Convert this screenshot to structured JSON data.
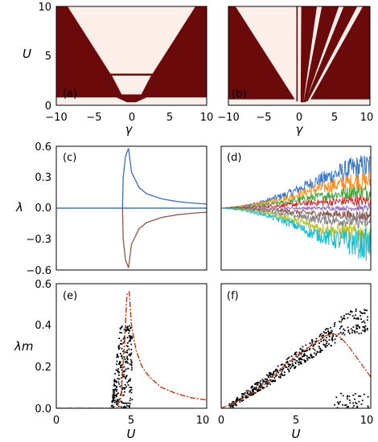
{
  "chart_data": [
    {
      "panel_label": "(a)",
      "type": "heatmap",
      "xlabel": "γ",
      "ylabel": "U",
      "xlim": [
        -10,
        10
      ],
      "ylim": [
        0,
        10
      ],
      "xticks": [
        "−10",
        "−5",
        "0",
        "5",
        "10"
      ],
      "yticks": [
        "0",
        "5",
        "10"
      ],
      "region_colors": [
        "#fcefe9",
        "#6b0a0a"
      ],
      "regions": [
        {
          "class": "dark",
          "polygon": [
            [
              -10,
              10
            ],
            [
              -8.5,
              10
            ],
            [
              -2.8,
              3.2
            ],
            [
              2.8,
              3.2
            ],
            [
              8.5,
              10
            ],
            [
              10,
              10
            ],
            [
              10,
              0.8
            ],
            [
              2,
              0.8
            ],
            [
              0.6,
              0.3
            ],
            [
              -0.6,
              0.3
            ],
            [
              -2,
              0.8
            ],
            [
              -10,
              0.8
            ]
          ]
        },
        {
          "class": "light",
          "polygon": [
            [
              -2.6,
              3.0
            ],
            [
              2.6,
              3.0
            ],
            [
              1.3,
              1.1
            ],
            [
              -1.3,
              1.1
            ]
          ]
        }
      ]
    },
    {
      "panel_label": "(b)",
      "type": "heatmap",
      "xlabel": "γ",
      "ylabel": "",
      "xlim": [
        -10,
        10
      ],
      "ylim": [
        0,
        10
      ],
      "xticks": [
        "−10",
        "−5",
        "0",
        "5",
        "10"
      ],
      "yticks": [],
      "region_colors": [
        "#fcefe9",
        "#6b0a0a"
      ],
      "regions": [
        {
          "class": "dark",
          "polygon": [
            [
              -10,
              10
            ],
            [
              -9,
              10
            ],
            [
              -0.6,
              0.6
            ],
            [
              -10,
              0.6
            ]
          ]
        },
        {
          "class": "dark",
          "polygon": [
            [
              -0.4,
              10
            ],
            [
              -0.2,
              10
            ],
            [
              -0.2,
              0.4
            ],
            [
              -0.4,
              0.4
            ]
          ]
        },
        {
          "class": "dark",
          "polygon": [
            [
              0.3,
              10
            ],
            [
              2.5,
              10
            ],
            [
              0.6,
              0.3
            ],
            [
              0.2,
              0.3
            ]
          ]
        },
        {
          "class": "dark",
          "polygon": [
            [
              3.2,
              10
            ],
            [
              5.6,
              10
            ],
            [
              0.9,
              0.3
            ],
            [
              0.6,
              0.3
            ]
          ]
        },
        {
          "class": "dark",
          "polygon": [
            [
              6.3,
              10
            ],
            [
              8.2,
              10
            ],
            [
              1.2,
              0.4
            ],
            [
              0.9,
              0.4
            ]
          ]
        },
        {
          "class": "dark",
          "polygon": [
            [
              9,
              10
            ],
            [
              10,
              10
            ],
            [
              10,
              0.6
            ],
            [
              1.6,
              0.6
            ]
          ]
        }
      ]
    },
    {
      "panel_label": "(c)",
      "type": "line",
      "xlabel": "",
      "ylabel": "λ",
      "xlim": [
        0,
        10
      ],
      "ylim": [
        -0.6,
        0.6
      ],
      "xticks": [],
      "yticks": [
        "−0.6",
        "−0.3",
        "0.0",
        "0.3",
        "0.6"
      ],
      "ytick_values": [
        -0.6,
        -0.3,
        0.0,
        0.3,
        0.6
      ],
      "series": [
        {
          "color": "#3b6fb6",
          "x": [
            4.4,
            4.45,
            4.6,
            4.8,
            5.0,
            5.5,
            6.0,
            7.0,
            8.0,
            9.0,
            10.0
          ],
          "y": [
            0.0,
            0.3,
            0.5,
            0.58,
            0.35,
            0.2,
            0.14,
            0.09,
            0.065,
            0.05,
            0.04
          ]
        },
        {
          "color": "#8b5a4a",
          "x": [
            4.4,
            4.45,
            4.6,
            4.8,
            5.0,
            5.5,
            6.0,
            7.0,
            8.0,
            9.0,
            10.0
          ],
          "y": [
            0.0,
            -0.3,
            -0.5,
            -0.58,
            -0.35,
            -0.2,
            -0.14,
            -0.09,
            -0.065,
            -0.05,
            -0.04
          ]
        },
        {
          "color": "#d14aa8",
          "x": [
            0,
            10
          ],
          "y": [
            0,
            0
          ]
        },
        {
          "color": "#1f77b4",
          "x": [
            0,
            10
          ],
          "y": [
            0,
            0
          ]
        }
      ]
    },
    {
      "panel_label": "(d)",
      "type": "area",
      "xlabel": "",
      "ylabel": "",
      "xlim": [
        0,
        10
      ],
      "ylim": [
        -0.6,
        0.6
      ],
      "xticks": [],
      "yticks": [],
      "series": [
        {
          "color": "#3b75c4",
          "center": [
            0.0,
            0.02,
            0.07,
            0.14,
            0.24,
            0.32,
            0.38,
            0.4
          ],
          "spread": [
            0.0,
            0.01,
            0.02,
            0.04,
            0.06,
            0.09,
            0.12,
            0.15
          ]
        },
        {
          "color": "#ff8c1a",
          "center": [
            0.0,
            0.015,
            0.05,
            0.1,
            0.17,
            0.22,
            0.25,
            0.26
          ],
          "spread": [
            0.0,
            0.01,
            0.02,
            0.03,
            0.05,
            0.07,
            0.09,
            0.1
          ]
        },
        {
          "color": "#3fa535",
          "center": [
            0.0,
            0.01,
            0.03,
            0.06,
            0.1,
            0.13,
            0.15,
            0.16
          ],
          "spread": [
            0.0,
            0.01,
            0.015,
            0.025,
            0.04,
            0.05,
            0.07,
            0.08
          ]
        },
        {
          "color": "#d62728",
          "center": [
            0.0,
            0.005,
            0.015,
            0.03,
            0.05,
            0.06,
            0.07,
            0.07
          ],
          "spread": [
            0.0,
            0.005,
            0.01,
            0.02,
            0.03,
            0.04,
            0.05,
            0.05
          ]
        },
        {
          "color": "#9467bd",
          "center": [
            0.0,
            0.0,
            0.0,
            0.0,
            0.0,
            0.0,
            0.0,
            0.0
          ],
          "spread": [
            0.0,
            0.002,
            0.005,
            0.01,
            0.015,
            0.02,
            0.025,
            0.03
          ]
        },
        {
          "color": "#8c564b",
          "center": [
            0.0,
            -0.005,
            -0.015,
            -0.03,
            -0.05,
            -0.06,
            -0.07,
            -0.07
          ],
          "spread": [
            0.0,
            0.005,
            0.01,
            0.02,
            0.03,
            0.04,
            0.05,
            0.05
          ]
        },
        {
          "color": "#7f7f7f",
          "center": [
            0.0,
            -0.01,
            -0.03,
            -0.06,
            -0.1,
            -0.12,
            -0.13,
            -0.14
          ],
          "spread": [
            0.0,
            0.01,
            0.015,
            0.025,
            0.04,
            0.05,
            0.06,
            0.07
          ]
        },
        {
          "color": "#bcbd22",
          "center": [
            0.0,
            -0.015,
            -0.05,
            -0.1,
            -0.17,
            -0.22,
            -0.24,
            -0.25
          ],
          "spread": [
            0.0,
            0.01,
            0.02,
            0.03,
            0.05,
            0.07,
            0.09,
            0.1
          ]
        },
        {
          "color": "#17becf",
          "center": [
            0.0,
            -0.02,
            -0.07,
            -0.14,
            -0.24,
            -0.3,
            -0.34,
            -0.36
          ],
          "spread": [
            0.0,
            0.01,
            0.02,
            0.04,
            0.06,
            0.09,
            0.13,
            0.17
          ]
        }
      ],
      "x": [
        0,
        1.5,
        3,
        4.5,
        6,
        7.5,
        8.75,
        10
      ]
    },
    {
      "panel_label": "(e)",
      "type": "scatter",
      "xlabel": "U",
      "ylabel": "λm",
      "xlim": [
        0,
        10
      ],
      "ylim": [
        0,
        0.6
      ],
      "xticks": [
        "0",
        "5",
        "10"
      ],
      "yticks": [
        "0.0",
        "0.2",
        "0.4",
        "0.6"
      ],
      "tick_values_x": [
        0,
        5,
        10
      ],
      "tick_values_y": [
        0.0,
        0.2,
        0.4,
        0.6
      ],
      "line": {
        "color": "#c0401a",
        "style": "dash-dot",
        "x": [
          0,
          3.5,
          4.0,
          4.3,
          4.5,
          4.7,
          4.85,
          5.0,
          5.3,
          5.7,
          6.2,
          7.0,
          8.0,
          9.0,
          10.0
        ],
        "y": [
          0.0,
          0.0,
          0.0,
          0.05,
          0.28,
          0.55,
          0.56,
          0.4,
          0.28,
          0.2,
          0.15,
          0.1,
          0.07,
          0.05,
          0.04
        ]
      },
      "scatter_color": "#000000",
      "scatter_region": {
        "x": [
          3.6,
          5.0
        ],
        "y": [
          0.0,
          0.4
        ]
      }
    },
    {
      "panel_label": "(f)",
      "type": "scatter",
      "xlabel": "U",
      "ylabel": "",
      "xlim": [
        0,
        10
      ],
      "ylim": [
        0,
        0.6
      ],
      "xticks": [
        "0",
        "5",
        "10"
      ],
      "yticks": [],
      "line": {
        "color": "#c0401a",
        "style": "dash-dot",
        "x": [
          0,
          1,
          2,
          3,
          4,
          5,
          6,
          7,
          7.5,
          8,
          8.5,
          9,
          9.5,
          10
        ],
        "y": [
          0.0,
          0.03,
          0.07,
          0.12,
          0.19,
          0.25,
          0.3,
          0.35,
          0.36,
          0.34,
          0.3,
          0.25,
          0.2,
          0.15
        ]
      },
      "scatter_color": "#000000",
      "scatter_band": {
        "x": [
          0.5,
          9.8
        ],
        "center": [
          0.01,
          0.42
        ],
        "spread": 0.05
      }
    }
  ]
}
